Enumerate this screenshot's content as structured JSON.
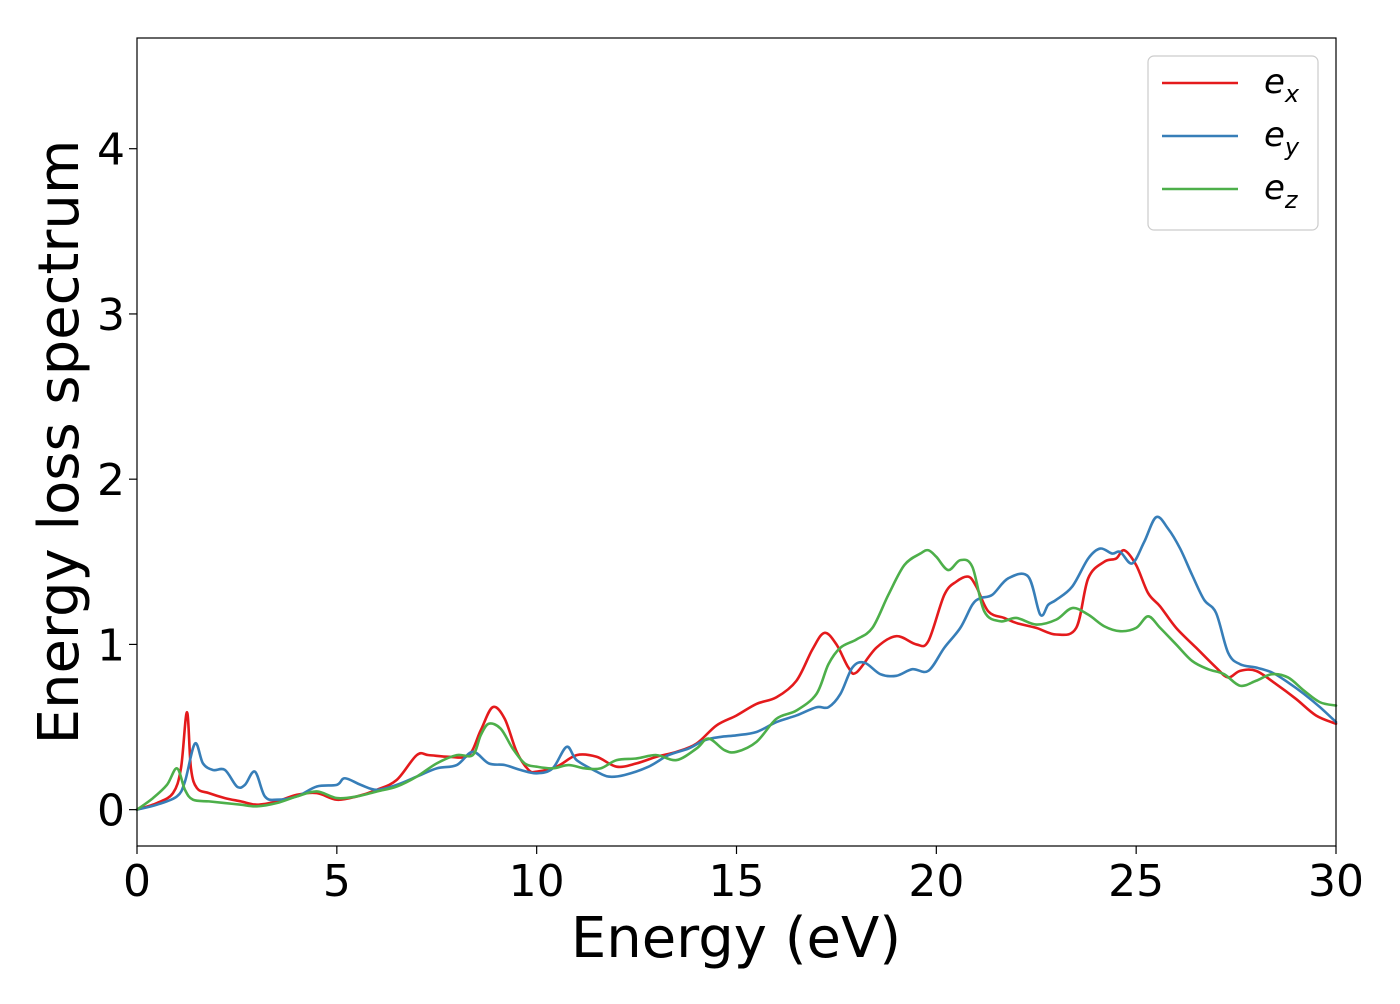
{
  "chart_data": {
    "type": "line",
    "title": "",
    "xlabel": "Energy (eV)",
    "ylabel": "Energy loss spectrum",
    "xlim": [
      0,
      30
    ],
    "ylim": [
      -0.22,
      4.67
    ],
    "xticks": [
      0,
      5,
      10,
      15,
      20,
      25,
      30
    ],
    "xtick_labels": [
      "0",
      "5",
      "10",
      "15",
      "20",
      "25",
      "30"
    ],
    "yticks": [
      0,
      1,
      2,
      3,
      4
    ],
    "ytick_labels": [
      "0",
      "1",
      "2",
      "3",
      "4"
    ],
    "grid": false,
    "legend_position": "top-right",
    "series": [
      {
        "name": "e_x",
        "label_base": "e",
        "label_sub": "x",
        "color": "#e41a1c",
        "x": [
          0,
          0.5,
          0.9,
          1.1,
          1.25,
          1.35,
          1.5,
          1.8,
          2.2,
          2.6,
          3.0,
          3.5,
          4.0,
          4.5,
          5.0,
          5.5,
          6.0,
          6.5,
          7.0,
          7.3,
          7.8,
          8.3,
          8.6,
          8.9,
          9.2,
          9.5,
          9.8,
          10.0,
          10.5,
          11.0,
          11.5,
          12.0,
          12.5,
          13.0,
          13.5,
          14.0,
          14.5,
          15.0,
          15.5,
          16.0,
          16.5,
          16.9,
          17.2,
          17.5,
          17.8,
          18.0,
          18.5,
          19.0,
          19.5,
          19.8,
          20.2,
          20.5,
          20.8,
          21.0,
          21.3,
          21.7,
          22.0,
          22.5,
          23.0,
          23.5,
          23.8,
          24.2,
          24.5,
          24.7,
          25.0,
          25.3,
          25.6,
          26.0,
          26.5,
          27.0,
          27.3,
          27.6,
          28.0,
          28.5,
          29.0,
          29.5,
          30.0
        ],
        "y": [
          0.0,
          0.04,
          0.1,
          0.25,
          0.59,
          0.25,
          0.13,
          0.1,
          0.07,
          0.05,
          0.03,
          0.05,
          0.09,
          0.1,
          0.06,
          0.08,
          0.12,
          0.18,
          0.33,
          0.33,
          0.32,
          0.33,
          0.48,
          0.62,
          0.55,
          0.35,
          0.24,
          0.23,
          0.26,
          0.33,
          0.32,
          0.26,
          0.28,
          0.32,
          0.35,
          0.4,
          0.51,
          0.57,
          0.64,
          0.68,
          0.78,
          0.97,
          1.07,
          1.0,
          0.86,
          0.83,
          0.98,
          1.05,
          1.0,
          1.02,
          1.3,
          1.38,
          1.41,
          1.35,
          1.2,
          1.16,
          1.13,
          1.1,
          1.06,
          1.1,
          1.4,
          1.5,
          1.52,
          1.57,
          1.48,
          1.31,
          1.23,
          1.1,
          0.98,
          0.86,
          0.8,
          0.84,
          0.84,
          0.76,
          0.67,
          0.57,
          0.52
        ]
      },
      {
        "name": "e_y",
        "label_base": "e",
        "label_sub": "y",
        "color": "#377eb8",
        "x": [
          0,
          0.5,
          1.0,
          1.2,
          1.45,
          1.65,
          1.9,
          2.2,
          2.5,
          2.7,
          2.95,
          3.2,
          3.5,
          4.0,
          4.5,
          5.0,
          5.2,
          5.6,
          6.0,
          6.5,
          7.0,
          7.5,
          8.0,
          8.4,
          8.8,
          9.2,
          9.6,
          10.0,
          10.4,
          10.75,
          11.0,
          11.5,
          11.8,
          12.2,
          12.8,
          13.3,
          13.8,
          14.2,
          14.6,
          15.0,
          15.5,
          16.0,
          16.5,
          17.0,
          17.3,
          17.6,
          17.9,
          18.2,
          18.6,
          19.0,
          19.4,
          19.8,
          20.2,
          20.6,
          20.9,
          21.1,
          21.4,
          21.8,
          22.3,
          22.6,
          22.8,
          23.0,
          23.4,
          23.8,
          24.1,
          24.4,
          24.6,
          24.9,
          25.2,
          25.5,
          25.8,
          26.1,
          26.4,
          26.7,
          27.0,
          27.3,
          27.6,
          28.0,
          28.4,
          28.8,
          29.2,
          29.6,
          30.0
        ],
        "y": [
          0.0,
          0.03,
          0.08,
          0.17,
          0.4,
          0.28,
          0.24,
          0.24,
          0.14,
          0.15,
          0.23,
          0.08,
          0.06,
          0.08,
          0.14,
          0.15,
          0.19,
          0.15,
          0.12,
          0.15,
          0.2,
          0.25,
          0.27,
          0.35,
          0.28,
          0.27,
          0.24,
          0.22,
          0.25,
          0.38,
          0.3,
          0.23,
          0.2,
          0.21,
          0.26,
          0.33,
          0.37,
          0.42,
          0.44,
          0.45,
          0.47,
          0.53,
          0.57,
          0.62,
          0.62,
          0.7,
          0.86,
          0.89,
          0.82,
          0.81,
          0.85,
          0.84,
          0.98,
          1.1,
          1.24,
          1.28,
          1.3,
          1.4,
          1.41,
          1.18,
          1.24,
          1.27,
          1.35,
          1.52,
          1.58,
          1.55,
          1.56,
          1.49,
          1.62,
          1.77,
          1.7,
          1.58,
          1.42,
          1.27,
          1.19,
          0.95,
          0.88,
          0.86,
          0.83,
          0.77,
          0.7,
          0.62,
          0.53
        ]
      },
      {
        "name": "e_z",
        "label_base": "e",
        "label_sub": "z",
        "color": "#4daf4a",
        "x": [
          0,
          0.4,
          0.75,
          1.0,
          1.2,
          1.4,
          1.8,
          2.2,
          2.6,
          3.0,
          3.5,
          4.0,
          4.5,
          5.0,
          5.5,
          6.0,
          6.5,
          7.0,
          7.5,
          8.0,
          8.4,
          8.6,
          8.8,
          9.1,
          9.4,
          9.7,
          10.0,
          10.4,
          10.8,
          11.2,
          11.6,
          12.0,
          12.5,
          13.0,
          13.5,
          14.0,
          14.3,
          14.7,
          15.0,
          15.5,
          16.0,
          16.5,
          17.0,
          17.3,
          17.6,
          18.0,
          18.4,
          18.8,
          19.2,
          19.6,
          19.8,
          20.0,
          20.3,
          20.6,
          20.9,
          21.2,
          21.6,
          22.0,
          22.5,
          23.0,
          23.4,
          23.8,
          24.2,
          24.6,
          25.0,
          25.3,
          25.6,
          26.0,
          26.4,
          26.8,
          27.2,
          27.6,
          28.0,
          28.4,
          28.8,
          29.2,
          29.6,
          30.0
        ],
        "y": [
          0.0,
          0.07,
          0.15,
          0.25,
          0.12,
          0.06,
          0.05,
          0.04,
          0.03,
          0.02,
          0.04,
          0.08,
          0.11,
          0.07,
          0.08,
          0.11,
          0.14,
          0.2,
          0.28,
          0.33,
          0.33,
          0.45,
          0.52,
          0.49,
          0.37,
          0.28,
          0.26,
          0.25,
          0.27,
          0.25,
          0.25,
          0.3,
          0.31,
          0.33,
          0.3,
          0.37,
          0.43,
          0.36,
          0.35,
          0.41,
          0.55,
          0.6,
          0.7,
          0.88,
          0.98,
          1.03,
          1.1,
          1.3,
          1.48,
          1.55,
          1.57,
          1.53,
          1.45,
          1.51,
          1.47,
          1.2,
          1.14,
          1.16,
          1.12,
          1.15,
          1.22,
          1.18,
          1.11,
          1.08,
          1.1,
          1.17,
          1.1,
          1.0,
          0.9,
          0.85,
          0.82,
          0.75,
          0.78,
          0.82,
          0.8,
          0.72,
          0.65,
          0.63
        ]
      }
    ]
  }
}
